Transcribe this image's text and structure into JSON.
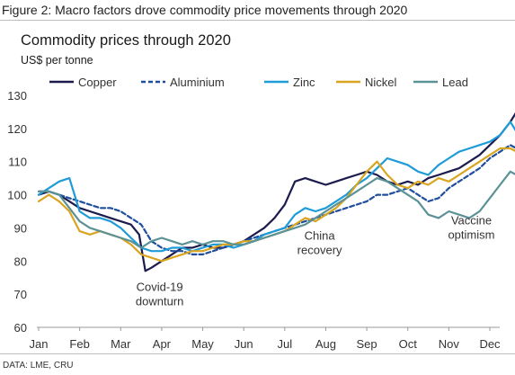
{
  "figure_title": "Figure 2: Macro factors drove commodity price movements through 2020",
  "source_note": "DATA: LME, CRU",
  "chart_data": {
    "type": "line",
    "title": "Commodity prices through 2020",
    "subtitle": "US$ per tonne",
    "xlabel": "",
    "ylabel": "US$ per tonne",
    "categories": [
      "Jan",
      "Feb",
      "Mar",
      "Apr",
      "May",
      "Jun",
      "Jul",
      "Aug",
      "Sep",
      "Oct",
      "Nov",
      "Dec"
    ],
    "ylim": [
      60,
      130
    ],
    "yticks": [
      60,
      70,
      80,
      90,
      100,
      110,
      120,
      130
    ],
    "grid": false,
    "legend": "top",
    "series": [
      {
        "name": "Copper",
        "color": "#1b1b4d",
        "dash": "solid",
        "x": [
          0,
          0.25,
          0.5,
          0.75,
          1,
          1.25,
          1.5,
          1.75,
          2,
          2.25,
          2.45,
          2.6,
          2.75,
          3,
          3.25,
          3.5,
          3.75,
          4,
          4.25,
          4.5,
          4.75,
          5,
          5.25,
          5.5,
          5.75,
          6,
          6.25,
          6.5,
          6.75,
          7,
          7.25,
          7.5,
          7.75,
          8,
          8.25,
          8.5,
          8.75,
          9,
          9.25,
          9.5,
          9.75,
          10,
          10.25,
          10.5,
          10.75,
          11,
          11.25,
          11.5,
          11.65
        ],
        "values": [
          100,
          101,
          100,
          98,
          96,
          95,
          94,
          93,
          92,
          91,
          88,
          77,
          78,
          80,
          82,
          84,
          84,
          85,
          84,
          84,
          85,
          86,
          88,
          90,
          93,
          97,
          104,
          105,
          104,
          103,
          104,
          105,
          106,
          107,
          106,
          104,
          103,
          104,
          103,
          105,
          106,
          107,
          108,
          110,
          112,
          115,
          118,
          122,
          125
        ]
      },
      {
        "name": "Aluminium",
        "color": "#1f4e9c",
        "dash": "dashed",
        "x": [
          0,
          0.25,
          0.5,
          0.75,
          1,
          1.25,
          1.5,
          1.75,
          2,
          2.25,
          2.5,
          2.75,
          3,
          3.25,
          3.5,
          3.75,
          4,
          4.25,
          4.5,
          4.75,
          5,
          5.25,
          5.5,
          5.75,
          6,
          6.25,
          6.5,
          6.75,
          7,
          7.25,
          7.5,
          7.75,
          8,
          8.25,
          8.5,
          8.75,
          9,
          9.25,
          9.5,
          9.75,
          10,
          10.25,
          10.5,
          10.75,
          11,
          11.25,
          11.5,
          11.65
        ],
        "values": [
          101,
          101,
          100,
          99,
          98,
          97,
          96,
          96,
          95,
          93,
          91,
          86,
          84,
          83,
          83,
          82,
          82,
          83,
          84,
          85,
          86,
          87,
          88,
          89,
          90,
          91,
          92,
          93,
          94,
          95,
          96,
          97,
          98,
          100,
          100,
          101,
          102,
          100,
          98,
          99,
          102,
          104,
          106,
          108,
          111,
          113,
          115,
          114
        ]
      },
      {
        "name": "Zinc",
        "color": "#1f9bd7",
        "dash": "solid",
        "x": [
          0,
          0.25,
          0.5,
          0.75,
          1,
          1.25,
          1.5,
          1.75,
          2,
          2.25,
          2.5,
          2.75,
          3,
          3.25,
          3.5,
          3.75,
          4,
          4.25,
          4.5,
          4.75,
          5,
          5.25,
          5.5,
          5.75,
          6,
          6.25,
          6.5,
          6.75,
          7,
          7.25,
          7.5,
          7.75,
          8,
          8.25,
          8.5,
          8.75,
          9,
          9.25,
          9.5,
          9.75,
          10,
          10.25,
          10.5,
          10.75,
          11,
          11.25,
          11.5,
          11.65
        ],
        "values": [
          100,
          102,
          104,
          105,
          95,
          93,
          93,
          92,
          90,
          87,
          84,
          83,
          83,
          84,
          84,
          83,
          84,
          85,
          85,
          84,
          85,
          86,
          88,
          89,
          90,
          94,
          96,
          95,
          96,
          98,
          100,
          103,
          105,
          108,
          111,
          110,
          109,
          107,
          106,
          109,
          111,
          113,
          114,
          115,
          116,
          118,
          122,
          119
        ]
      },
      {
        "name": "Nickel",
        "color": "#d9a520",
        "dash": "solid",
        "x": [
          0,
          0.25,
          0.5,
          0.75,
          1,
          1.25,
          1.5,
          1.75,
          2,
          2.25,
          2.5,
          2.75,
          3,
          3.25,
          3.5,
          3.75,
          4,
          4.25,
          4.5,
          4.75,
          5,
          5.25,
          5.5,
          5.75,
          6,
          6.25,
          6.5,
          6.75,
          7,
          7.25,
          7.5,
          7.75,
          8,
          8.25,
          8.5,
          8.75,
          9,
          9.25,
          9.5,
          9.75,
          10,
          10.25,
          10.5,
          10.75,
          11,
          11.25,
          11.5,
          11.65
        ],
        "values": [
          98,
          100,
          98,
          95,
          89,
          88,
          89,
          88,
          87,
          85,
          82,
          81,
          80,
          81,
          82,
          83,
          83,
          84,
          85,
          85,
          86,
          86,
          87,
          88,
          89,
          91,
          93,
          92,
          94,
          96,
          99,
          103,
          107,
          110,
          106,
          103,
          102,
          104,
          103,
          105,
          104,
          106,
          108,
          110,
          112,
          114,
          114,
          113
        ]
      },
      {
        "name": "Lead",
        "color": "#5b9295",
        "dash": "solid",
        "x": [
          0,
          0.25,
          0.5,
          0.75,
          1,
          1.25,
          1.5,
          1.75,
          2,
          2.25,
          2.5,
          2.75,
          3,
          3.25,
          3.5,
          3.75,
          4,
          4.25,
          4.5,
          4.75,
          5,
          5.25,
          5.5,
          5.75,
          6,
          6.25,
          6.5,
          6.75,
          7,
          7.25,
          7.5,
          7.75,
          8,
          8.25,
          8.5,
          8.75,
          9,
          9.25,
          9.5,
          9.75,
          10,
          10.25,
          10.5,
          10.75,
          11,
          11.25,
          11.5,
          11.65
        ],
        "values": [
          101,
          101,
          100,
          96,
          92,
          90,
          89,
          88,
          87,
          86,
          84,
          86,
          87,
          86,
          85,
          86,
          85,
          86,
          86,
          85,
          85,
          86,
          87,
          88,
          89,
          90,
          91,
          93,
          95,
          97,
          99,
          101,
          103,
          105,
          104,
          102,
          100,
          98,
          94,
          93,
          95,
          94,
          93,
          95,
          99,
          103,
          107,
          106
        ]
      }
    ],
    "annotations": [
      {
        "lines": [
          "Covid-19",
          "downturn"
        ],
        "x": 2.95,
        "y": 71
      },
      {
        "lines": [
          "China",
          "recovery"
        ],
        "x": 6.85,
        "y": 86.5
      },
      {
        "lines": [
          "Vaccine",
          "optimism"
        ],
        "x": 10.55,
        "y": 91
      }
    ]
  }
}
